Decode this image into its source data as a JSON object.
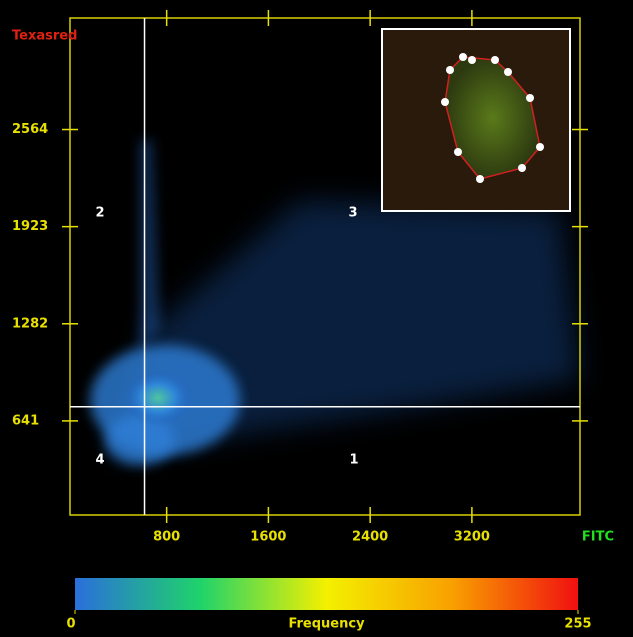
{
  "chart_data": {
    "type": "scatter",
    "x_label": "FITC",
    "y_label": "Texasred",
    "xlim": [
      40,
      4050
    ],
    "ylim": [
      20,
      3300
    ],
    "xticks": [
      800,
      1600,
      2400,
      3200
    ],
    "yticks": [
      641,
      1282,
      1923,
      2564
    ],
    "thresholds": {
      "x": 626,
      "y": 734
    },
    "quadrant_labels": [
      "1",
      "2",
      "3",
      "4"
    ],
    "colorbar": {
      "label": "Frequency",
      "lim": [
        0,
        255
      ],
      "ticks": [
        0,
        255
      ],
      "colors": [
        "#2a6fdb",
        "#1fd36a",
        "#f4f000",
        "#f8a000",
        "#f01010"
      ]
    }
  }
}
